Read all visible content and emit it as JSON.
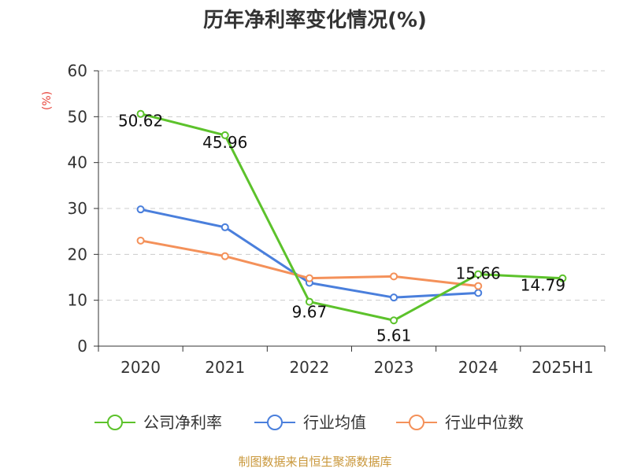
{
  "chart_data": {
    "type": "line",
    "title": "历年净利率变化情况(%)",
    "ylabel": "(%)",
    "categories": [
      "2020",
      "2021",
      "2022",
      "2023",
      "2024",
      "2025H1"
    ],
    "ylim": [
      0,
      60
    ],
    "yticks": [
      0,
      10,
      20,
      30,
      40,
      50,
      60
    ],
    "grid": true,
    "legend_position": "bottom",
    "series": [
      {
        "name": "公司净利率",
        "color": "#5cc22b",
        "values": [
          50.62,
          45.96,
          9.67,
          5.61,
          15.66,
          14.79
        ],
        "labels": [
          "50.62",
          "45.96",
          "9.67",
          "5.61",
          "15.66",
          "14.79"
        ]
      },
      {
        "name": "行业均值",
        "color": "#4a7fdc",
        "values": [
          29.8,
          25.9,
          13.8,
          10.6,
          11.6,
          null
        ]
      },
      {
        "name": "行业中位数",
        "color": "#f4915a",
        "values": [
          23.0,
          19.6,
          14.8,
          15.2,
          13.1,
          null
        ]
      }
    ],
    "source": "制图数据来自恒生聚源数据库"
  }
}
